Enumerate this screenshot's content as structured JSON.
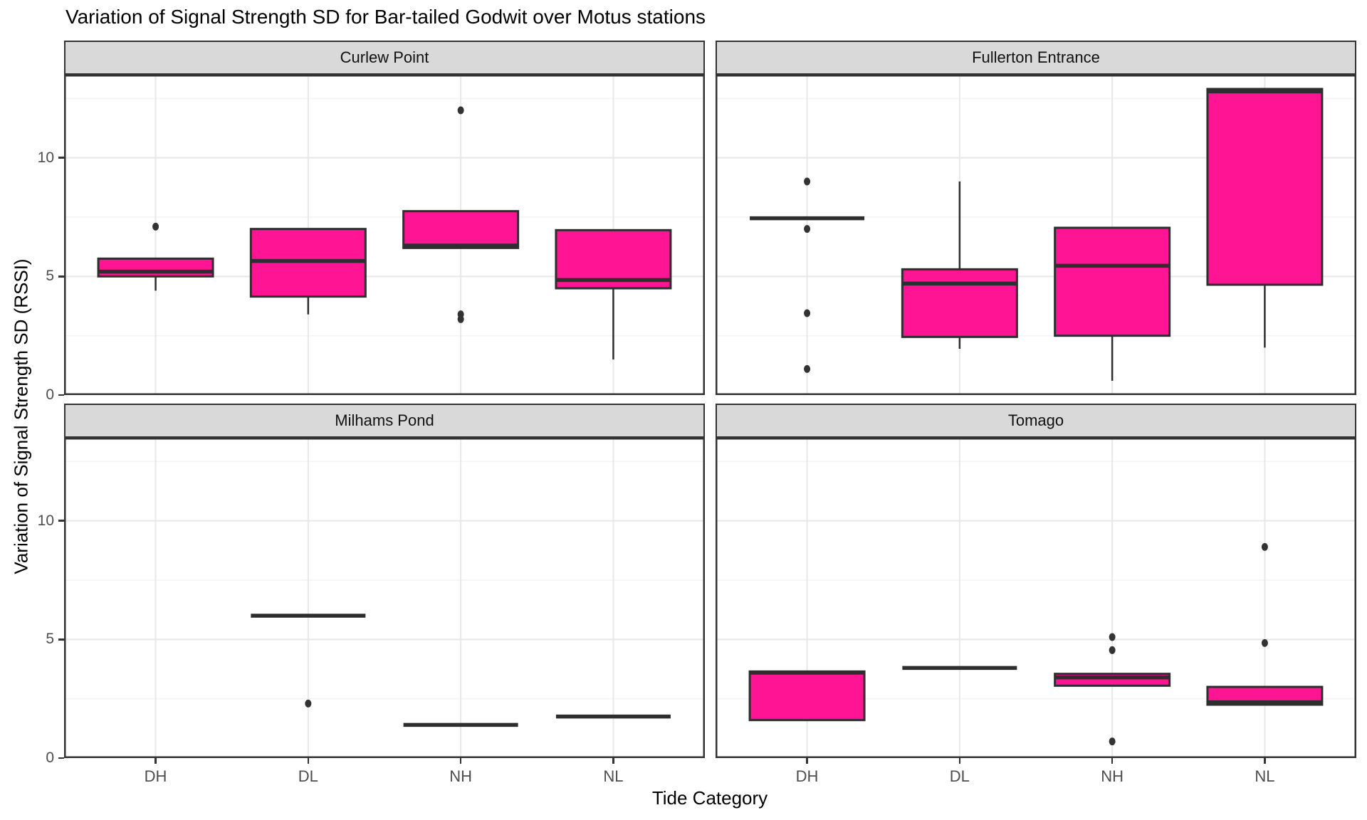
{
  "title": "Variation of Signal Strength SD for Bar-tailed Godwit over Motus stations",
  "x_axis": {
    "label": "Tide Category",
    "categories": [
      "DH",
      "DL",
      "NH",
      "NL"
    ]
  },
  "y_axis": {
    "label": "Variation of Signal Strength SD (RSSI)",
    "ticks": [
      "0",
      "5",
      "10"
    ]
  },
  "chart_data": {
    "type": "boxplot",
    "title": "Variation of Signal Strength SD for Bar-tailed Godwit over Motus stations",
    "xlabel": "Tide Category",
    "ylabel": "Variation of Signal Strength SD (RSSI)",
    "categories": [
      "DH",
      "DL",
      "NH",
      "NL"
    ],
    "y_ticks": [
      0,
      5,
      10
    ],
    "ylim": [
      0,
      13.5
    ],
    "grid": "major-and-minor",
    "legend": "none",
    "colors": {
      "box_fill": "#FF1493",
      "box_stroke": "#2E2E2E",
      "outlier": "#333333",
      "strip_fill": "#D9D9D9",
      "panel_border": "#333333",
      "grid_major": "#E8E8E8",
      "grid_minor": "#F4F4F4"
    },
    "facets": [
      {
        "name": "Curlew Point",
        "boxes": [
          {
            "category": "DH",
            "q1": 5.0,
            "median": 5.2,
            "q3": 5.75,
            "whisker_low": 4.4,
            "whisker_high": 5.75,
            "outliers": [
              7.1
            ]
          },
          {
            "category": "DL",
            "q1": 4.15,
            "median": 5.65,
            "q3": 7.0,
            "whisker_low": 3.4,
            "whisker_high": 7.0,
            "outliers": []
          },
          {
            "category": "NH",
            "q1": 6.2,
            "median": 6.3,
            "q3": 7.75,
            "whisker_low": 6.2,
            "whisker_high": 7.75,
            "outliers": [
              12.0,
              3.4,
              3.2
            ]
          },
          {
            "category": "NL",
            "q1": 4.5,
            "median": 4.85,
            "q3": 6.95,
            "whisker_low": 1.5,
            "whisker_high": 6.95,
            "outliers": []
          }
        ]
      },
      {
        "name": "Fullerton Entrance",
        "boxes": [
          {
            "category": "DH",
            "q1": 7.45,
            "median": 7.45,
            "q3": 7.45,
            "whisker_low": 7.45,
            "whisker_high": 7.45,
            "outliers": [
              9.0,
              7.0,
              3.45,
              1.1
            ]
          },
          {
            "category": "DL",
            "q1": 2.45,
            "median": 4.7,
            "q3": 5.3,
            "whisker_low": 1.95,
            "whisker_high": 9.0,
            "outliers": []
          },
          {
            "category": "NH",
            "q1": 2.5,
            "median": 5.45,
            "q3": 7.05,
            "whisker_low": 0.6,
            "whisker_high": 7.05,
            "outliers": []
          },
          {
            "category": "NL",
            "q1": 4.65,
            "median": 12.8,
            "q3": 12.9,
            "whisker_low": 2.0,
            "whisker_high": 12.9,
            "outliers": []
          }
        ]
      },
      {
        "name": "Milhams Pond",
        "boxes": [
          {
            "category": "DH"
          },
          {
            "category": "DL",
            "q1": 6.0,
            "median": 6.0,
            "q3": 6.0,
            "whisker_low": 6.0,
            "whisker_high": 6.0,
            "outliers": [
              2.3
            ]
          },
          {
            "category": "NH",
            "q1": 1.4,
            "median": 1.4,
            "q3": 1.4,
            "whisker_low": 1.4,
            "whisker_high": 1.4,
            "outliers": []
          },
          {
            "category": "NL",
            "q1": 1.75,
            "median": 1.75,
            "q3": 1.75,
            "whisker_low": 1.75,
            "whisker_high": 1.75,
            "outliers": []
          }
        ]
      },
      {
        "name": "Tomago",
        "boxes": [
          {
            "category": "DH",
            "q1": 1.6,
            "median": 3.6,
            "q3": 3.65,
            "whisker_low": 1.6,
            "whisker_high": 3.65,
            "outliers": []
          },
          {
            "category": "DL",
            "q1": 3.8,
            "median": 3.8,
            "q3": 3.8,
            "whisker_low": 3.8,
            "whisker_high": 3.8,
            "outliers": []
          },
          {
            "category": "NH",
            "q1": 3.05,
            "median": 3.4,
            "q3": 3.55,
            "whisker_low": 3.05,
            "whisker_high": 3.55,
            "outliers": [
              5.1,
              4.55,
              0.7
            ]
          },
          {
            "category": "NL",
            "q1": 2.25,
            "median": 2.35,
            "q3": 3.0,
            "whisker_low": 2.25,
            "whisker_high": 3.0,
            "outliers": [
              8.9,
              4.85
            ]
          }
        ]
      }
    ]
  }
}
